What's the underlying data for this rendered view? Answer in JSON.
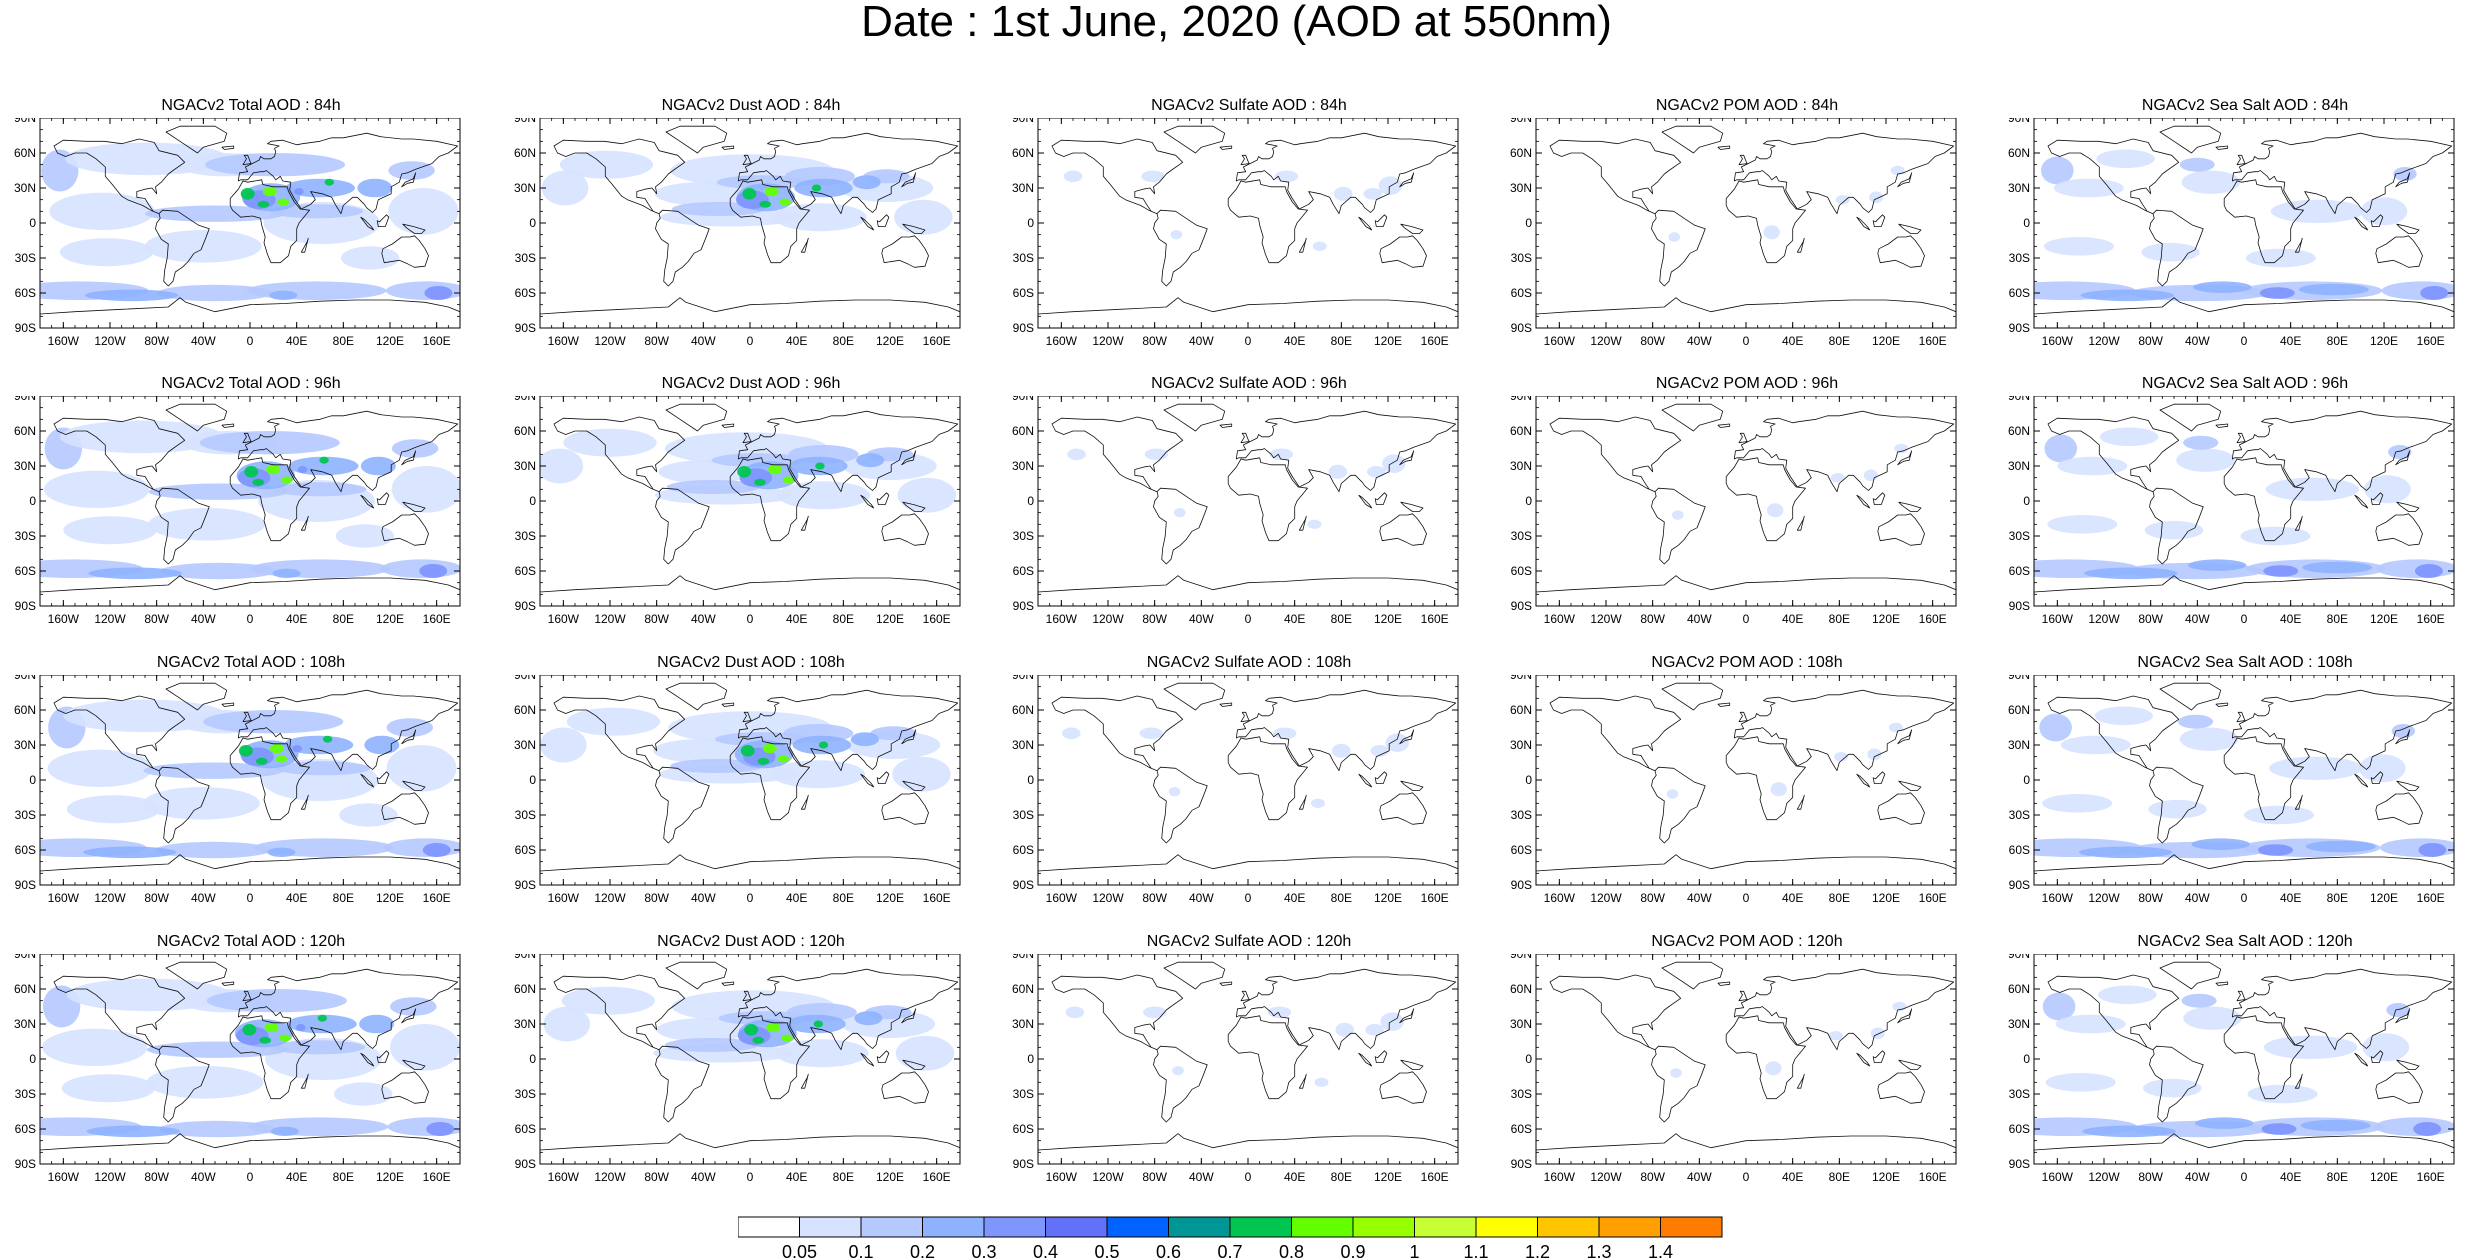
{
  "title": "Date : 1st June, 2020 (AOD at 550nm)",
  "rows": [
    {
      "panels": [
        {
          "title": "NGACv2 Total AOD : 84h",
          "field": "total"
        },
        {
          "title": "NGACv2 Dust AOD : 84h",
          "field": "dust"
        },
        {
          "title": "NGACv2 Sulfate AOD : 84h",
          "field": "sulfate"
        },
        {
          "title": "NGACv2 POM AOD : 84h",
          "field": "pom"
        },
        {
          "title": "NGACv2 Sea Salt AOD : 84h",
          "field": "seasalt"
        }
      ]
    },
    {
      "panels": [
        {
          "title": "NGACv2 Total AOD : 96h",
          "field": "total"
        },
        {
          "title": "NGACv2 Dust AOD : 96h",
          "field": "dust"
        },
        {
          "title": "NGACv2 Sulfate AOD : 96h",
          "field": "sulfate"
        },
        {
          "title": "NGACv2 POM AOD : 96h",
          "field": "pom"
        },
        {
          "title": "NGACv2 Sea Salt AOD : 96h",
          "field": "seasalt"
        }
      ]
    },
    {
      "panels": [
        {
          "title": "NGACv2 Total AOD : 108h",
          "field": "total"
        },
        {
          "title": "NGACv2 Dust AOD : 108h",
          "field": "dust"
        },
        {
          "title": "NGACv2 Sulfate AOD : 108h",
          "field": "sulfate"
        },
        {
          "title": "NGACv2 POM AOD : 108h",
          "field": "pom"
        },
        {
          "title": "NGACv2 Sea Salt AOD : 108h",
          "field": "seasalt"
        }
      ]
    },
    {
      "panels": [
        {
          "title": "NGACv2 Total AOD : 120h",
          "field": "total"
        },
        {
          "title": "NGACv2 Dust AOD : 120h",
          "field": "dust"
        },
        {
          "title": "NGACv2 Sulfate AOD : 120h",
          "field": "sulfate"
        },
        {
          "title": "NGACv2 POM AOD : 120h",
          "field": "pom"
        },
        {
          "title": "NGACv2 Sea Salt  AOD : 120h",
          "field": "seasalt"
        }
      ]
    }
  ],
  "lat_ticks": [
    "90N",
    "60N",
    "30N",
    "0",
    "30S",
    "60S",
    "90S"
  ],
  "lon_ticks": [
    "160W",
    "120W",
    "80W",
    "40W",
    "0",
    "40E",
    "80E",
    "120E",
    "160E"
  ],
  "colorbar": {
    "labels": [
      "0.05",
      "0.1",
      "0.2",
      "0.3",
      "0.4",
      "0.5",
      "0.6",
      "0.7",
      "0.8",
      "0.9",
      "1",
      "1.1",
      "1.2",
      "1.3",
      "1.4"
    ],
    "colors": [
      "#ffffff",
      "#d6e2ff",
      "#b5c9ff",
      "#8eb2ff",
      "#7f96ff",
      "#6370f8",
      "#0062ff",
      "#009696",
      "#00c651",
      "#63ff00",
      "#96ff00",
      "#c6ff33",
      "#ffff00",
      "#ffc600",
      "#ffa000",
      "#ff7c00",
      "#ff1900"
    ]
  }
}
